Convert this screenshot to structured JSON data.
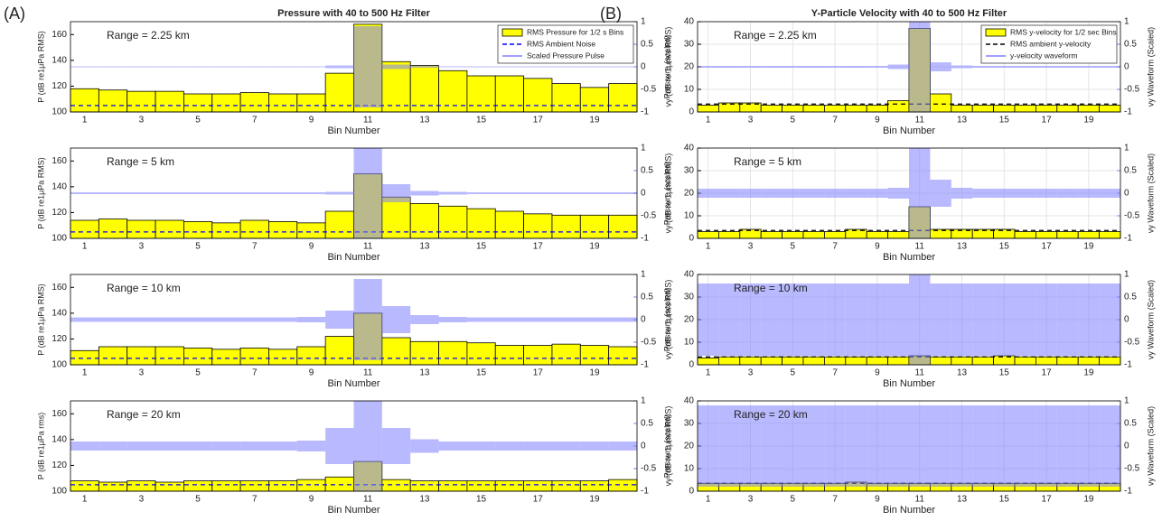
{
  "panel_labels": [
    "(A)",
    "(B)"
  ],
  "chart_data": [
    {
      "type": "bar",
      "title": "Pressure with 40 to 500 Hz Filter",
      "annotation": "Range = 2.25 km",
      "xlabel": "Bin Number",
      "ylabel": "P (dB re1μPa RMS)",
      "y2label": "Pressure (scaled)",
      "x": [
        1,
        2,
        3,
        4,
        5,
        6,
        7,
        8,
        9,
        10,
        11,
        12,
        13,
        14,
        15,
        16,
        17,
        18,
        19,
        20
      ],
      "xlim": [
        0.5,
        20.5
      ],
      "xticks": [
        1,
        3,
        5,
        7,
        9,
        11,
        13,
        15,
        17,
        19
      ],
      "ylim": [
        100,
        170
      ],
      "yticks": [
        100,
        120,
        140,
        160
      ],
      "y2lim": [
        -1,
        1
      ],
      "y2ticks": [
        -1,
        -0.5,
        0,
        0.5,
        1
      ],
      "grid": false,
      "legend": "upper right",
      "series": [
        {
          "name": "RMS Pressure for 1/2 s Bins",
          "kind": "bar",
          "color": "#ffff00",
          "values": [
            118,
            117,
            116,
            116,
            114,
            114,
            115,
            114,
            114,
            130,
            168,
            139,
            136,
            132,
            128,
            128,
            126,
            122,
            119,
            122
          ]
        },
        {
          "name": "RMS Ambient Noise",
          "kind": "hline",
          "color": "#0000ff",
          "value": 105
        },
        {
          "name": "Scaled Pressure Pulse",
          "kind": "envelope",
          "axis": "y2",
          "color": "#8080ff",
          "values": [
            0.01,
            0.01,
            0.01,
            0.01,
            0.01,
            0.01,
            0.01,
            0.01,
            0.01,
            0.03,
            0.9,
            0.05,
            0.02,
            0.01,
            0.01,
            0.01,
            0.01,
            0.01,
            0.01,
            0.01
          ]
        }
      ]
    },
    {
      "type": "bar",
      "annotation": "Range = 5 km",
      "xlabel": "Bin Number",
      "ylabel": "P (dB re1μPa RMS)",
      "y2label": "Pressure (scaled)",
      "x": [
        1,
        2,
        3,
        4,
        5,
        6,
        7,
        8,
        9,
        10,
        11,
        12,
        13,
        14,
        15,
        16,
        17,
        18,
        19,
        20
      ],
      "xlim": [
        0.5,
        20.5
      ],
      "xticks": [
        1,
        3,
        5,
        7,
        9,
        11,
        13,
        15,
        17,
        19
      ],
      "ylim": [
        100,
        170
      ],
      "yticks": [
        100,
        120,
        140,
        160
      ],
      "y2lim": [
        -1,
        1
      ],
      "y2ticks": [
        -1,
        -0.5,
        0,
        0.5,
        1
      ],
      "grid": false,
      "series": [
        {
          "kind": "bar",
          "color": "#ffff00",
          "values": [
            114,
            115,
            114,
            114,
            113,
            112,
            114,
            113,
            112,
            121,
            150,
            132,
            127,
            125,
            123,
            121,
            119,
            118,
            118,
            118
          ]
        },
        {
          "kind": "hline",
          "color": "#0000ff",
          "value": 105
        },
        {
          "kind": "envelope",
          "axis": "y2",
          "color": "#8080ff",
          "values": [
            0.02,
            0.02,
            0.02,
            0.02,
            0.02,
            0.02,
            0.02,
            0.02,
            0.02,
            0.03,
            1,
            0.2,
            0.05,
            0.03,
            0.02,
            0.02,
            0.02,
            0.02,
            0.02,
            0.02
          ]
        }
      ]
    },
    {
      "type": "bar",
      "annotation": "Range = 10 km",
      "xlabel": "Bin Number",
      "ylabel": "P (dB re1μPa RMS)",
      "y2label": "Pressure (scaled)",
      "x": [
        1,
        2,
        3,
        4,
        5,
        6,
        7,
        8,
        9,
        10,
        11,
        12,
        13,
        14,
        15,
        16,
        17,
        18,
        19,
        20
      ],
      "xlim": [
        0.5,
        20.5
      ],
      "xticks": [
        1,
        3,
        5,
        7,
        9,
        11,
        13,
        15,
        17,
        19
      ],
      "ylim": [
        100,
        170
      ],
      "yticks": [
        100,
        120,
        140,
        160
      ],
      "y2lim": [
        -1,
        1
      ],
      "y2ticks": [
        -1,
        -0.5,
        0,
        0.5,
        1
      ],
      "grid": false,
      "series": [
        {
          "kind": "bar",
          "color": "#ffff00",
          "values": [
            111,
            114,
            114,
            114,
            113,
            112,
            113,
            112,
            114,
            122,
            140,
            121,
            118,
            118,
            117,
            115,
            115,
            116,
            115,
            114
          ]
        },
        {
          "kind": "hline",
          "color": "#0000ff",
          "value": 105
        },
        {
          "kind": "envelope",
          "axis": "y2",
          "color": "#8080ff",
          "values": [
            0.05,
            0.05,
            0.05,
            0.05,
            0.05,
            0.05,
            0.05,
            0.05,
            0.06,
            0.2,
            0.9,
            0.3,
            0.1,
            0.06,
            0.05,
            0.05,
            0.05,
            0.05,
            0.05,
            0.05
          ]
        }
      ]
    },
    {
      "type": "bar",
      "annotation": "Range = 20 km",
      "xlabel": "Bin Number",
      "ylabel": "P (dB re1μPa rms)",
      "y2label": "Pressure (scaled)",
      "x": [
        1,
        2,
        3,
        4,
        5,
        6,
        7,
        8,
        9,
        10,
        11,
        12,
        13,
        14,
        15,
        16,
        17,
        18,
        19,
        20
      ],
      "xlim": [
        0.5,
        20.5
      ],
      "xticks": [
        1,
        3,
        5,
        7,
        9,
        11,
        13,
        15,
        17,
        19
      ],
      "ylim": [
        100,
        170
      ],
      "yticks": [
        100,
        120,
        140,
        160
      ],
      "y2lim": [
        -1,
        1
      ],
      "y2ticks": [
        -1,
        -0.5,
        0,
        0.5,
        1
      ],
      "grid": false,
      "series": [
        {
          "kind": "bar",
          "color": "#ffff00",
          "values": [
            108,
            107,
            108,
            107,
            108,
            108,
            108,
            108,
            109,
            111,
            123,
            109,
            108,
            108,
            108,
            108,
            108,
            108,
            108,
            109
          ]
        },
        {
          "kind": "hline",
          "color": "#0000ff",
          "value": 105
        },
        {
          "kind": "envelope",
          "axis": "y2",
          "color": "#8080ff",
          "values": [
            0.1,
            0.1,
            0.1,
            0.1,
            0.1,
            0.1,
            0.1,
            0.1,
            0.12,
            0.4,
            1,
            0.4,
            0.15,
            0.1,
            0.1,
            0.1,
            0.1,
            0.1,
            0.1,
            0.1
          ]
        }
      ]
    },
    {
      "type": "bar",
      "title": "Y-Particle Velocity with 40 to 500 Hz Filter",
      "annotation": "Range = 2.25 km",
      "xlabel": "Bin Number",
      "ylabel": "vy (dB re 1μm/s RMS)",
      "y2label": "vy Waveform (Scaled)",
      "x": [
        1,
        2,
        3,
        4,
        5,
        6,
        7,
        8,
        9,
        10,
        11,
        12,
        13,
        14,
        15,
        16,
        17,
        18,
        19,
        20
      ],
      "xlim": [
        0.5,
        20.5
      ],
      "xticks": [
        1,
        3,
        5,
        7,
        9,
        11,
        13,
        15,
        17,
        19
      ],
      "ylim": [
        0,
        40
      ],
      "yticks": [
        0,
        10,
        20,
        30,
        40
      ],
      "y2lim": [
        -1,
        1
      ],
      "y2ticks": [
        -1,
        -0.5,
        0,
        0.5,
        1
      ],
      "grid": true,
      "legend": "upper right",
      "series": [
        {
          "name": "RMS y-velocity for 1/2 sec Bins",
          "kind": "bar",
          "color": "#ffff00",
          "values": [
            3,
            4,
            4,
            3,
            3,
            3,
            3,
            3,
            3,
            5,
            37,
            8,
            3,
            3,
            3,
            3,
            3,
            3,
            3,
            3
          ]
        },
        {
          "name": "RMS ambient y-velocity",
          "kind": "hline",
          "color": "#000000",
          "value": 3.5
        },
        {
          "name": "y-velocity waveform",
          "kind": "envelope",
          "axis": "y2",
          "color": "#8080ff",
          "values": [
            0.02,
            0.02,
            0.02,
            0.02,
            0.02,
            0.02,
            0.02,
            0.02,
            0.02,
            0.05,
            1,
            0.1,
            0.03,
            0.02,
            0.02,
            0.02,
            0.02,
            0.02,
            0.02,
            0.02
          ]
        }
      ]
    },
    {
      "type": "bar",
      "annotation": "Range = 5 km",
      "xlabel": "Bin Number",
      "ylabel": "vy (dB re 1μm/s RMS)",
      "y2label": "vy Waveform (Scaled)",
      "x": [
        1,
        2,
        3,
        4,
        5,
        6,
        7,
        8,
        9,
        10,
        11,
        12,
        13,
        14,
        15,
        16,
        17,
        18,
        19,
        20
      ],
      "xlim": [
        0.5,
        20.5
      ],
      "xticks": [
        1,
        3,
        5,
        7,
        9,
        11,
        13,
        15,
        17,
        19
      ],
      "ylim": [
        0,
        40
      ],
      "yticks": [
        0,
        10,
        20,
        30,
        40
      ],
      "y2lim": [
        -1,
        1
      ],
      "y2ticks": [
        -1,
        -0.5,
        0,
        0.5,
        1
      ],
      "grid": true,
      "series": [
        {
          "kind": "bar",
          "color": "#ffff00",
          "values": [
            3,
            3,
            4,
            3,
            3,
            3,
            3,
            4,
            3,
            3,
            14,
            4,
            4,
            4,
            4,
            3,
            3,
            3,
            3,
            3
          ]
        },
        {
          "kind": "hline",
          "color": "#000000",
          "value": 3.5
        },
        {
          "kind": "envelope",
          "axis": "y2",
          "color": "#8080ff",
          "values": [
            0.1,
            0.1,
            0.1,
            0.1,
            0.1,
            0.1,
            0.1,
            0.1,
            0.1,
            0.12,
            1,
            0.3,
            0.12,
            0.1,
            0.1,
            0.1,
            0.1,
            0.1,
            0.1,
            0.1
          ]
        }
      ]
    },
    {
      "type": "bar",
      "annotation": "Range = 10 km",
      "xlabel": "Bin Number",
      "ylabel": "vy (dB re 1μm/s RMS)",
      "y2label": "vy Waveform (Scaled)",
      "x": [
        1,
        2,
        3,
        4,
        5,
        6,
        7,
        8,
        9,
        10,
        11,
        12,
        13,
        14,
        15,
        16,
        17,
        18,
        19,
        20
      ],
      "xlim": [
        0.5,
        20.5
      ],
      "xticks": [
        1,
        3,
        5,
        7,
        9,
        11,
        13,
        15,
        17,
        19
      ],
      "ylim": [
        0,
        40
      ],
      "yticks": [
        0,
        10,
        20,
        30,
        40
      ],
      "y2lim": [
        -1,
        1
      ],
      "y2ticks": [
        -1,
        -0.5,
        0,
        0.5,
        1
      ],
      "grid": true,
      "series": [
        {
          "kind": "bar",
          "color": "#ffff00",
          "values": [
            3,
            3.5,
            3.5,
            3.5,
            3.5,
            3.5,
            3.5,
            3.5,
            3.5,
            3.5,
            4,
            3.5,
            3.5,
            3.5,
            4,
            3.5,
            3.5,
            3.5,
            3.5,
            3.5
          ]
        },
        {
          "kind": "hline",
          "color": "#000000",
          "value": 3.5
        },
        {
          "kind": "envelope",
          "axis": "y2",
          "color": "#8080ff",
          "values": [
            0.8,
            0.8,
            0.8,
            0.8,
            0.8,
            0.8,
            0.8,
            0.8,
            0.8,
            0.8,
            1,
            0.8,
            0.8,
            0.8,
            0.8,
            0.8,
            0.8,
            0.8,
            0.8,
            0.8
          ]
        }
      ]
    },
    {
      "type": "bar",
      "annotation": "Range = 20 km",
      "xlabel": "Bin Number",
      "ylabel": "vy (dB re 1μm/s RMS)",
      "y2label": "vy Waveform (Scaled)",
      "x": [
        1,
        2,
        3,
        4,
        5,
        6,
        7,
        8,
        9,
        10,
        11,
        12,
        13,
        14,
        15,
        16,
        17,
        18,
        19,
        20
      ],
      "xlim": [
        0.5,
        20.5
      ],
      "xticks": [
        1,
        3,
        5,
        7,
        9,
        11,
        13,
        15,
        17,
        19
      ],
      "ylim": [
        0,
        40
      ],
      "yticks": [
        0,
        10,
        20,
        30,
        40
      ],
      "y2lim": [
        -1,
        1
      ],
      "y2ticks": [
        -1,
        -0.5,
        0,
        0.5,
        1
      ],
      "grid": true,
      "series": [
        {
          "kind": "bar",
          "color": "#ffff00",
          "values": [
            3.5,
            3.5,
            3.5,
            3.5,
            3.5,
            3.5,
            3.5,
            4,
            3.5,
            3.5,
            3.5,
            3.5,
            3.5,
            3.5,
            3.5,
            3.5,
            3.5,
            3.5,
            3.5,
            3.5
          ]
        },
        {
          "kind": "hline",
          "color": "#000000",
          "value": 3.5
        },
        {
          "kind": "envelope",
          "axis": "y2",
          "color": "#8080ff",
          "values": [
            0.9,
            0.9,
            0.9,
            0.9,
            0.9,
            0.9,
            0.9,
            0.9,
            0.9,
            0.9,
            0.9,
            0.9,
            0.9,
            0.9,
            0.9,
            0.9,
            0.9,
            0.9,
            0.9,
            0.9
          ]
        }
      ]
    }
  ]
}
